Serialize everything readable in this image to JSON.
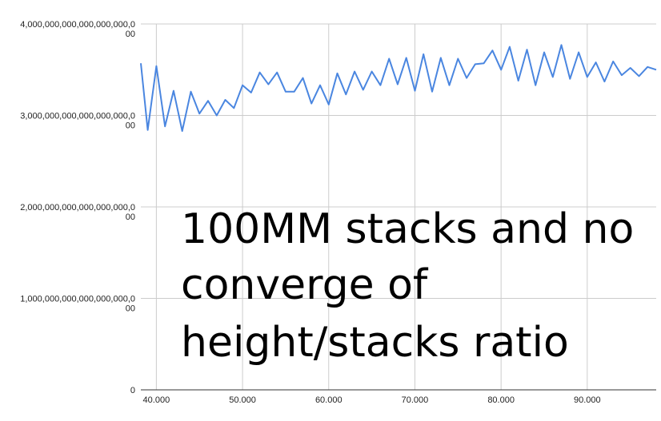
{
  "chart_data": {
    "type": "line",
    "title": "",
    "xlabel": "",
    "ylabel": "",
    "xlim": [
      38.2,
      98
    ],
    "ylim": [
      0,
      4000000000000000000000
    ],
    "grid": true,
    "legend": "none",
    "line_color": "#4a86e0",
    "y_tick_labels": [
      {
        "value": 4000000000000000000000,
        "line1": "4,000,000,000,000,000,000,0",
        "line2": "00"
      },
      {
        "value": 3000000000000000000000,
        "line1": "3,000,000,000,000,000,000,0",
        "line2": "00"
      },
      {
        "value": 2000000000000000000000,
        "line1": "2,000,000,000,000,000,000,0",
        "line2": "00"
      },
      {
        "value": 1000000000000000000000,
        "line1": "1,000,000,000,000,000,000,0",
        "line2": "00"
      },
      {
        "value": 0,
        "line1": "0",
        "line2": ""
      }
    ],
    "x_tick_labels": [
      {
        "value": 40,
        "label": "40.000"
      },
      {
        "value": 50,
        "label": "50.000"
      },
      {
        "value": 60,
        "label": "60.000"
      },
      {
        "value": 70,
        "label": "70.000"
      },
      {
        "value": 80,
        "label": "80.000"
      },
      {
        "value": 90,
        "label": "90.000"
      }
    ],
    "annotation": [
      "100MM stacks and no",
      "converge of",
      "height/stacks ratio"
    ],
    "series": [
      {
        "x": [
          38.2,
          39,
          40,
          41,
          42,
          43,
          44,
          45,
          46,
          47,
          48,
          49,
          50,
          51,
          52,
          53,
          54,
          55,
          56,
          57,
          58,
          59,
          60,
          61,
          62,
          63,
          64,
          65,
          66,
          67,
          68,
          69,
          70,
          71,
          72,
          73,
          74,
          75,
          76,
          77,
          78,
          79,
          80,
          81,
          82,
          83,
          84,
          85,
          86,
          87,
          88,
          89,
          90,
          91,
          92,
          93,
          94,
          95,
          96,
          97,
          98
        ],
        "values": [
          3570000000000000000000,
          2840000000000000000000,
          3540000000000000000000,
          2880000000000000000000,
          3270000000000000000000,
          2830000000000000000000,
          3260000000000000000000,
          3020000000000000000000,
          3160000000000000000000,
          3000000000000000000000,
          3170000000000000000000,
          3080000000000000000000,
          3330000000000000000000,
          3250000000000000000000,
          3470000000000000000000,
          3340000000000000000000,
          3470000000000000000000,
          3260000000000000000000,
          3260000000000000000000,
          3410000000000000000000,
          3130000000000000000000,
          3330000000000000000000,
          3120000000000000000000,
          3460000000000000000000,
          3230000000000000000000,
          3480000000000000000000,
          3280000000000000000000,
          3480000000000000000000,
          3330000000000000000000,
          3620000000000000000000,
          3340000000000000000000,
          3630000000000000000000,
          3270000000000000000000,
          3670000000000000000000,
          3260000000000000000000,
          3630000000000000000000,
          3330000000000000000000,
          3620000000000000000000,
          3410000000000000000000,
          3560000000000000000000,
          3570000000000000000000,
          3710000000000000000000,
          3500000000000000000000,
          3750000000000000000000,
          3380000000000000000000,
          3720000000000000000000,
          3330000000000000000000,
          3690000000000000000000,
          3420000000000000000000,
          3770000000000000000000,
          3400000000000000000000,
          3690000000000000000000,
          3420000000000000000000,
          3580000000000000000000,
          3370000000000000000000,
          3590000000000000000000,
          3440000000000000000000,
          3520000000000000000000,
          3430000000000000000000,
          3530000000000000000000,
          3500000000000000000000
        ]
      }
    ]
  }
}
